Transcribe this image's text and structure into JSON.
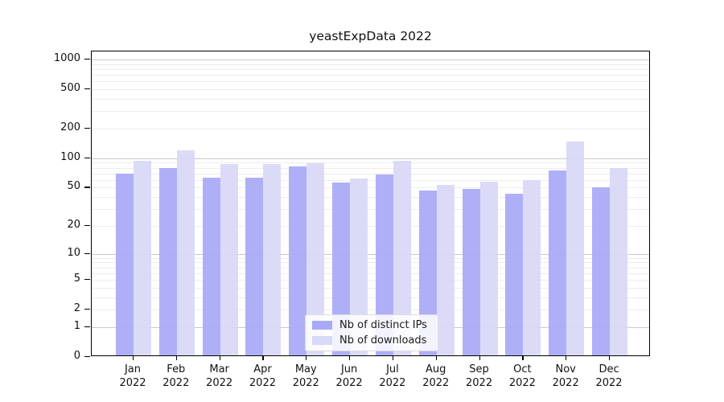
{
  "title": "yeastExpData 2022",
  "colors": {
    "bar_distinct_ips": "#a9a9f7",
    "bar_downloads": "#d8d8f7",
    "major_grid": "#c9c9c9",
    "minor_grid": "#ececec",
    "axis": "#000000"
  },
  "chart_data": {
    "type": "bar",
    "title": "yeastExpData 2022",
    "categories": [
      "Jan",
      "Feb",
      "Mar",
      "Apr",
      "May",
      "Jun",
      "Jul",
      "Aug",
      "Sep",
      "Oct",
      "Nov",
      "Dec"
    ],
    "x_tick_year": "2022",
    "series": [
      {
        "name": "Nb of distinct IPs",
        "color": "#a9a9f7",
        "values": [
          67,
          76,
          61,
          61,
          80,
          54,
          66,
          45,
          47,
          42,
          72,
          49
        ]
      },
      {
        "name": "Nb of downloads",
        "color": "#d8d8f7",
        "values": [
          91,
          116,
          84,
          84,
          86,
          60,
          90,
          51,
          55,
          58,
          143,
          76
        ]
      }
    ],
    "y_axis": {
      "scale": "log1p",
      "tick_values": [
        0,
        1,
        2,
        5,
        10,
        20,
        50,
        100,
        200,
        500,
        1000
      ],
      "range": [
        0,
        1200
      ]
    },
    "x_axis": {
      "label_line2": "2022"
    },
    "grid": {
      "horizontal": true,
      "vertical": false
    },
    "legend_position": "bottom-center-inside"
  }
}
